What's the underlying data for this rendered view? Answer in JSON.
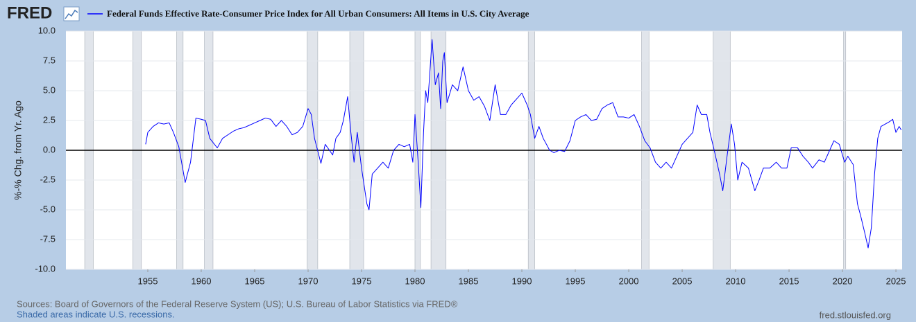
{
  "chart_data": {
    "type": "line",
    "logo": "FRED",
    "y_label": "%-% Chg. from Yr. Ago",
    "source": "Sources: Board of Governors of the Federal Reserve System (US); U.S. Bureau of Labor Statistics via FRED®",
    "note": "Shaded areas indicate U.S. recessions.",
    "site": "fred.stlouisfed.org",
    "xlim": [
      1947.34,
      2025.58
    ],
    "ylim": [
      -10,
      10
    ],
    "xticks": [
      1955,
      1960,
      1965,
      1970,
      1975,
      1980,
      1985,
      1990,
      1995,
      2000,
      2005,
      2010,
      2015,
      2020,
      2025
    ],
    "yticks": [
      {
        "value": -10,
        "label": "-10.0"
      },
      -7.5,
      {
        "value": -5,
        "label": "-5.0"
      },
      -2.5,
      {
        "value": 0,
        "label": "0.0"
      },
      2.5,
      {
        "value": 5,
        "label": "5.0"
      },
      7.5,
      {
        "value": 10,
        "label": "10.0"
      }
    ],
    "grid": true,
    "recessions": [
      [
        1949.1,
        1949.9
      ],
      [
        1953.6,
        1954.4
      ],
      [
        1957.7,
        1958.3
      ],
      [
        1960.3,
        1961.1
      ],
      [
        1969.9,
        1970.9
      ],
      [
        1973.9,
        1975.2
      ],
      [
        1980.0,
        1980.5
      ],
      [
        1981.5,
        1982.9
      ],
      [
        1990.6,
        1991.2
      ],
      [
        2001.2,
        2001.9
      ],
      [
        2007.9,
        2009.5
      ],
      [
        2020.1,
        2020.3
      ]
    ],
    "x": [
      1954.8,
      1955.0,
      1955.5,
      1956.0,
      1956.5,
      1957.0,
      1957.4,
      1957.9,
      1958.5,
      1959.0,
      1959.5,
      1960.0,
      1960.4,
      1960.8,
      1961.5,
      1962.0,
      1962.5,
      1963.0,
      1963.5,
      1964.0,
      1964.5,
      1965.0,
      1965.5,
      1966.0,
      1966.5,
      1967.0,
      1967.5,
      1968.0,
      1968.5,
      1969.0,
      1969.5,
      1970.0,
      1970.3,
      1970.6,
      1971.2,
      1971.6,
      1972.0,
      1972.3,
      1972.6,
      1973.0,
      1973.3,
      1973.7,
      1974.0,
      1974.3,
      1974.6,
      1975.0,
      1975.5,
      1975.7,
      1976.0,
      1976.5,
      1977.0,
      1977.5,
      1978.0,
      1978.5,
      1979.0,
      1979.5,
      1979.8,
      1980.0,
      1980.3,
      1980.55,
      1980.8,
      1981.0,
      1981.2,
      1981.6,
      1981.9,
      1982.2,
      1982.4,
      1982.6,
      1982.75,
      1983.0,
      1983.5,
      1984.0,
      1984.5,
      1985.0,
      1985.5,
      1986.0,
      1986.5,
      1987.0,
      1987.5,
      1988.0,
      1988.5,
      1989.0,
      1989.5,
      1990.0,
      1990.5,
      1990.8,
      1991.2,
      1991.6,
      1992.0,
      1992.6,
      1993.0,
      1993.5,
      1994.0,
      1994.5,
      1995.0,
      1995.5,
      1996.0,
      1996.5,
      1997.0,
      1997.5,
      1998.0,
      1998.5,
      1999.0,
      1999.5,
      2000.0,
      2000.5,
      2001.0,
      2001.5,
      2002.0,
      2002.5,
      2003.0,
      2003.5,
      2004.0,
      2004.5,
      2005.0,
      2005.5,
      2006.0,
      2006.4,
      2006.8,
      2007.3,
      2007.6,
      2008.0,
      2008.5,
      2008.8,
      2009.2,
      2009.6,
      2009.9,
      2010.2,
      2010.6,
      2011.2,
      2011.8,
      2012.2,
      2012.6,
      2013.2,
      2013.8,
      2014.3,
      2014.8,
      2015.2,
      2015.8,
      2016.3,
      2016.8,
      2017.2,
      2017.8,
      2018.3,
      2018.8,
      2019.2,
      2019.7,
      2020.2,
      2020.5,
      2021.0,
      2021.4,
      2021.7,
      2022.1,
      2022.4,
      2022.7,
      2023.0,
      2023.3,
      2023.6,
      2024.0,
      2024.4,
      2024.7,
      2025.0,
      2025.3,
      2025.5
    ],
    "series": [
      {
        "name": "Federal Funds Effective Rate-Consumer Price Index for All Urban Consumers: All Items in U.S. City Average",
        "color": "#0000ff",
        "values": [
          0.5,
          1.5,
          2.0,
          2.3,
          2.2,
          2.3,
          1.5,
          0.3,
          -2.7,
          -1.0,
          2.7,
          2.6,
          2.5,
          1.0,
          0.2,
          1.0,
          1.3,
          1.6,
          1.8,
          1.9,
          2.1,
          2.3,
          2.5,
          2.7,
          2.6,
          2.0,
          2.5,
          2.0,
          1.3,
          1.5,
          2.0,
          3.5,
          3.0,
          1.0,
          -1.1,
          0.5,
          0.0,
          -0.4,
          1.0,
          1.5,
          2.5,
          4.5,
          1.5,
          -1.0,
          1.5,
          -1.5,
          -4.5,
          -5.0,
          -2.0,
          -1.5,
          -1.0,
          -1.5,
          0.0,
          0.5,
          0.3,
          0.5,
          -1.0,
          3.0,
          -1.0,
          -4.8,
          1.5,
          5.0,
          4.0,
          9.3,
          5.5,
          6.5,
          3.5,
          7.5,
          8.2,
          4.0,
          5.5,
          5.0,
          7.0,
          5.0,
          4.2,
          4.5,
          3.7,
          2.5,
          5.5,
          3.0,
          3.0,
          3.8,
          4.3,
          4.8,
          3.8,
          3.0,
          1.0,
          2.0,
          1.0,
          0.0,
          -0.2,
          0.0,
          -0.1,
          0.8,
          2.5,
          2.8,
          3.0,
          2.5,
          2.6,
          3.5,
          3.8,
          4.0,
          2.8,
          2.8,
          2.7,
          3.0,
          2.0,
          0.8,
          0.2,
          -1.0,
          -1.5,
          -1.0,
          -1.5,
          -0.5,
          0.5,
          1.0,
          1.5,
          3.8,
          3.0,
          3.0,
          1.5,
          0.0,
          -2.0,
          -3.4,
          -0.5,
          2.2,
          0.5,
          -2.5,
          -1.0,
          -1.5,
          -3.4,
          -2.5,
          -1.5,
          -1.5,
          -1.0,
          -1.5,
          -1.5,
          0.2,
          0.2,
          -0.5,
          -1.0,
          -1.5,
          -0.8,
          -1.0,
          0.0,
          0.8,
          0.5,
          -1.0,
          -0.5,
          -1.2,
          -4.5,
          -5.5,
          -7.0,
          -8.2,
          -6.5,
          -2.0,
          1.0,
          2.0,
          2.2,
          2.4,
          2.6,
          1.5,
          2.0,
          1.7
        ]
      }
    ]
  }
}
